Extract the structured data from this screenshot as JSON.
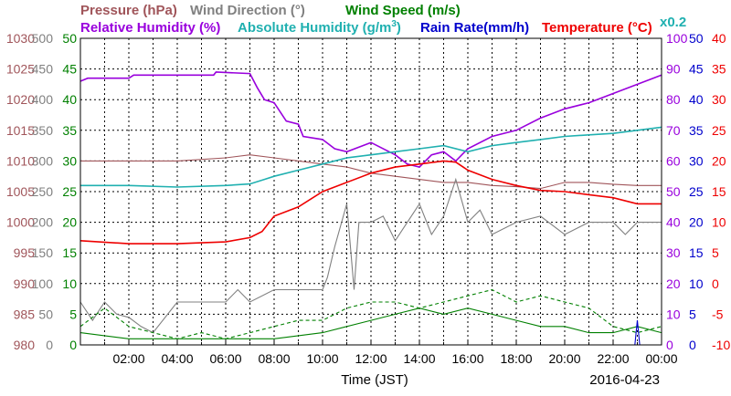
{
  "chart_data": {
    "type": "line",
    "title": "",
    "date_label": "2016-04-23",
    "xlabel": "Time (JST)",
    "xlim": [
      "00:00",
      "24:00"
    ],
    "x_ticks": [
      "02:00",
      "04:00",
      "06:00",
      "08:00",
      "10:00",
      "12:00",
      "14:00",
      "16:00",
      "18:00",
      "20:00",
      "22:00",
      "00:00"
    ],
    "grid": true,
    "legend": {
      "pressure": "Pressure (hPa)",
      "wind_dir": "Wind Direction (°)",
      "wind_speed": "Wind Speed (m/s)",
      "rh": "Relative Humidity (%)",
      "ah_prefix": "Absolute Humidity (g/m",
      "ah_sup": "3",
      "ah_suffix": ")",
      "ah_scale": "x0.2",
      "rain": "Rain Rate(mm/h)",
      "temp": "Temperature (°C)"
    },
    "axes": {
      "pressure": {
        "range": [
          980,
          1030
        ],
        "ticks": [
          "1030",
          "1025",
          "1020",
          "1015",
          "1010",
          "1005",
          "1000",
          "995",
          "990",
          "985",
          "980"
        ],
        "color": "#a0555a"
      },
      "wind_dir": {
        "range": [
          0,
          500
        ],
        "ticks": [
          "500",
          "450",
          "400",
          "350",
          "300",
          "250",
          "200",
          "150",
          "100",
          "50",
          "0"
        ],
        "color": "#808080"
      },
      "wind_speed": {
        "range": [
          0,
          50
        ],
        "ticks": [
          "50",
          "45",
          "40",
          "35",
          "30",
          "25",
          "20",
          "15",
          "10",
          "5",
          "0"
        ],
        "color": "#008000"
      },
      "rh": {
        "range": [
          0,
          100
        ],
        "ticks": [
          "100",
          "90",
          "80",
          "70",
          "60",
          "50",
          "40",
          "30",
          "20",
          "10",
          "0"
        ],
        "color": "#9900dd"
      },
      "rain": {
        "range": [
          0,
          50
        ],
        "ticks": [
          "50",
          "45",
          "40",
          "35",
          "30",
          "25",
          "20",
          "15",
          "10",
          "5",
          "0"
        ],
        "color": "#0000cc"
      },
      "temp": {
        "range": [
          -10,
          40
        ],
        "ticks": [
          "40",
          "35",
          "30",
          "25",
          "20",
          "15",
          "10",
          "5",
          "0",
          "-5",
          "-10"
        ],
        "color": "#ee0000"
      }
    },
    "series": [
      {
        "name": "Pressure (hPa)",
        "key": "pressure",
        "color": "#a0555a",
        "points": [
          [
            0,
            1010
          ],
          [
            4,
            1010
          ],
          [
            6,
            1010.5
          ],
          [
            7,
            1011
          ],
          [
            8,
            1010.5
          ],
          [
            10,
            1009.5
          ],
          [
            11,
            1009
          ],
          [
            12,
            1008
          ],
          [
            13,
            1007.5
          ],
          [
            14,
            1007
          ],
          [
            15,
            1006.5
          ],
          [
            16,
            1006.5
          ],
          [
            17,
            1006
          ],
          [
            18,
            1005.8
          ],
          [
            19,
            1005.5
          ],
          [
            20,
            1006.5
          ],
          [
            21,
            1006.5
          ],
          [
            22,
            1006.2
          ],
          [
            23,
            1006
          ],
          [
            24,
            1006
          ]
        ]
      },
      {
        "name": "Relative Humidity (%)",
        "key": "rh",
        "color": "#9900dd",
        "points": [
          [
            0,
            86
          ],
          [
            0.3,
            87
          ],
          [
            2,
            87
          ],
          [
            2.2,
            88
          ],
          [
            5.5,
            88
          ],
          [
            5.6,
            89
          ],
          [
            7,
            88.5
          ],
          [
            7.3,
            84
          ],
          [
            7.6,
            80
          ],
          [
            8,
            79
          ],
          [
            8.5,
            73
          ],
          [
            9,
            72
          ],
          [
            9.2,
            68
          ],
          [
            10,
            67
          ],
          [
            10.5,
            64
          ],
          [
            11,
            63
          ],
          [
            12,
            66
          ],
          [
            13,
            62
          ],
          [
            13.5,
            59
          ],
          [
            14,
            58
          ],
          [
            14.5,
            62
          ],
          [
            15,
            63
          ],
          [
            15.5,
            60
          ],
          [
            16,
            64
          ],
          [
            17,
            68
          ],
          [
            18,
            70
          ],
          [
            19,
            74
          ],
          [
            20,
            77
          ],
          [
            21,
            79
          ],
          [
            22,
            82
          ],
          [
            23,
            85
          ],
          [
            24,
            88
          ]
        ]
      },
      {
        "name": "Absolute Humidity",
        "key": "rh",
        "color": "#20b0b0",
        "points": [
          [
            0,
            52
          ],
          [
            2,
            52
          ],
          [
            4,
            51.5
          ],
          [
            6,
            52
          ],
          [
            7,
            52.5
          ],
          [
            7.6,
            54
          ],
          [
            8,
            55
          ],
          [
            9,
            57
          ],
          [
            10,
            59
          ],
          [
            11,
            61
          ],
          [
            12,
            62
          ],
          [
            13,
            63
          ],
          [
            14,
            64
          ],
          [
            15,
            65
          ],
          [
            16,
            63
          ],
          [
            17,
            65
          ],
          [
            18,
            66
          ],
          [
            19,
            67
          ],
          [
            20,
            68
          ],
          [
            21,
            68.5
          ],
          [
            22,
            69
          ],
          [
            23,
            70
          ],
          [
            24,
            71
          ]
        ]
      },
      {
        "name": "Temperature (°C)",
        "key": "temp",
        "color": "#ee0000",
        "points": [
          [
            0,
            7
          ],
          [
            2,
            6.5
          ],
          [
            4,
            6.5
          ],
          [
            6,
            6.8
          ],
          [
            7,
            7.5
          ],
          [
            7.5,
            8.5
          ],
          [
            8,
            11
          ],
          [
            9,
            12.5
          ],
          [
            10,
            15
          ],
          [
            11,
            16.5
          ],
          [
            12,
            18
          ],
          [
            13,
            19
          ],
          [
            14,
            19.5
          ],
          [
            15,
            20
          ],
          [
            15.5,
            19.8
          ],
          [
            16,
            18.5
          ],
          [
            17,
            17
          ],
          [
            18,
            16
          ],
          [
            19,
            15.2
          ],
          [
            20,
            15
          ],
          [
            21,
            14.5
          ],
          [
            22,
            14
          ],
          [
            23,
            13
          ],
          [
            24,
            13
          ]
        ]
      },
      {
        "name": "Wind Direction (°)",
        "key": "wind_dir",
        "color": "#808080",
        "points": [
          [
            0,
            70
          ],
          [
            0.5,
            40
          ],
          [
            1,
            70
          ],
          [
            1.5,
            50
          ],
          [
            2,
            45
          ],
          [
            2.5,
            30
          ],
          [
            3,
            20
          ],
          [
            4,
            70
          ],
          [
            6,
            70
          ],
          [
            6.5,
            90
          ],
          [
            7,
            70
          ],
          [
            8,
            90
          ],
          [
            10,
            90
          ],
          [
            10.2,
            110
          ],
          [
            10.5,
            160
          ],
          [
            11,
            230
          ],
          [
            11.3,
            90
          ],
          [
            11.5,
            200
          ],
          [
            12,
            200
          ],
          [
            12.5,
            210
          ],
          [
            13,
            170
          ],
          [
            13.5,
            200
          ],
          [
            14,
            230
          ],
          [
            14.5,
            180
          ],
          [
            15,
            210
          ],
          [
            15.5,
            270
          ],
          [
            16,
            200
          ],
          [
            16.5,
            220
          ],
          [
            17,
            180
          ],
          [
            18,
            200
          ],
          [
            19,
            210
          ],
          [
            20,
            180
          ],
          [
            21,
            200
          ],
          [
            22,
            200
          ],
          [
            22.5,
            180
          ],
          [
            23,
            200
          ],
          [
            24,
            200
          ]
        ]
      },
      {
        "name": "Wind Speed (m/s)",
        "key": "wind_speed",
        "color": "#008000",
        "points": [
          [
            0,
            2
          ],
          [
            2,
            1
          ],
          [
            4,
            1
          ],
          [
            6,
            1
          ],
          [
            8,
            1
          ],
          [
            10,
            2
          ],
          [
            11,
            3
          ],
          [
            12,
            4
          ],
          [
            13,
            5
          ],
          [
            14,
            6
          ],
          [
            15,
            5
          ],
          [
            16,
            6
          ],
          [
            17,
            5
          ],
          [
            18,
            4
          ],
          [
            19,
            3
          ],
          [
            20,
            3
          ],
          [
            21,
            2
          ],
          [
            22,
            2
          ],
          [
            23,
            3
          ],
          [
            24,
            2
          ]
        ]
      },
      {
        "name": "Wind Speed gust",
        "key": "wind_speed",
        "color": "#008000",
        "dashed": true,
        "points": [
          [
            0,
            3
          ],
          [
            1,
            6
          ],
          [
            2,
            3
          ],
          [
            3,
            2
          ],
          [
            4,
            1
          ],
          [
            5,
            2
          ],
          [
            6,
            1
          ],
          [
            7,
            2
          ],
          [
            8,
            3
          ],
          [
            9,
            4
          ],
          [
            10,
            4
          ],
          [
            11,
            6
          ],
          [
            12,
            7
          ],
          [
            13,
            7
          ],
          [
            14,
            6
          ],
          [
            15,
            7
          ],
          [
            16,
            8
          ],
          [
            17,
            9
          ],
          [
            18,
            7
          ],
          [
            19,
            8
          ],
          [
            20,
            7
          ],
          [
            21,
            6
          ],
          [
            22,
            3
          ],
          [
            23,
            2
          ],
          [
            24,
            3
          ]
        ]
      },
      {
        "name": "Rain Rate(mm/h)",
        "key": "rain",
        "color": "#0000cc",
        "points": [
          [
            0,
            0
          ],
          [
            22.9,
            0
          ],
          [
            23,
            4
          ],
          [
            23.1,
            0
          ],
          [
            24,
            0
          ]
        ]
      }
    ]
  }
}
